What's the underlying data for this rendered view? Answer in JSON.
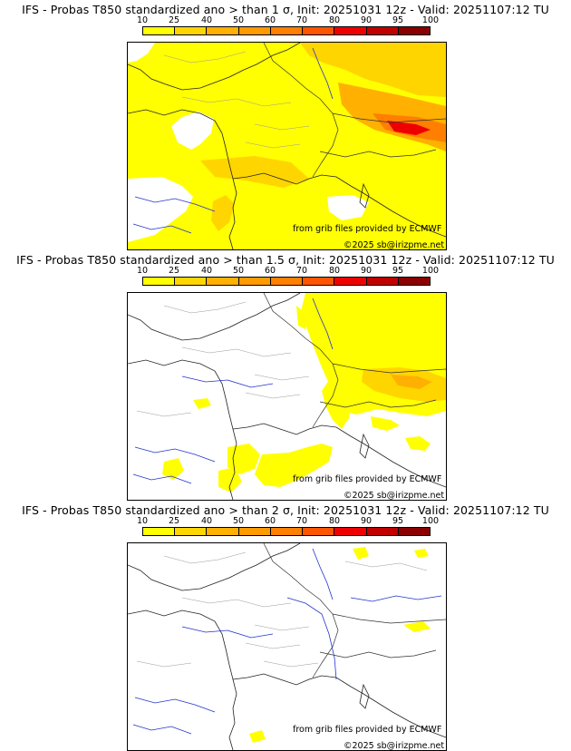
{
  "colorbar": {
    "ticks": [
      "10",
      "25",
      "40",
      "50",
      "60",
      "70",
      "80",
      "90",
      "95",
      "100"
    ],
    "colors": [
      "#ffff00",
      "#ffd500",
      "#ffb000",
      "#ff9a00",
      "#ff7f00",
      "#ff5500",
      "#ee0000",
      "#c00000",
      "#8b0000",
      "#5a0000"
    ]
  },
  "panels": [
    {
      "title": "IFS - Probas T850  standardized ano > than 1 σ, Init: 20251031 12z - Valid: 20251107:12 TU",
      "source_note": "from grib files provided by ECMWF",
      "copyright": "©2025 sb@irizpme.net"
    },
    {
      "title": "IFS - Probas T850  standardized ano > than 1.5 σ, Init: 20251031 12z - Valid: 20251107:12 TU",
      "source_note": "from grib files provided by ECMWF",
      "copyright": "©2025 sb@irizpme.net"
    },
    {
      "title": "IFS - Probas T850  standardized ano > than 2 σ, Init: 20251031 12z - Valid: 20251107:12 TU",
      "source_note": "from grib files provided by ECMWF",
      "copyright": "©2025 sb@irizpme.net"
    }
  ]
}
